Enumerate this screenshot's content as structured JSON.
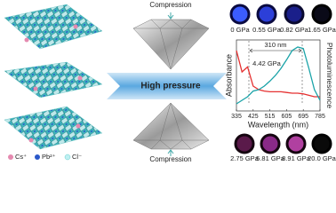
{
  "illustration": {
    "top_label": "Compression",
    "center_label": "High pressure",
    "bottom_label": "Compression",
    "legend": [
      "Cs⁺",
      "Pb²⁺",
      "Cl⁻"
    ],
    "top_pressures": [
      "0 GPa",
      "0.55 GPa",
      "0.82 GPa",
      "1.65 GPa"
    ],
    "bottom_pressures": [
      "2.75 GPa",
      "5.81 GPa",
      "8.91 GPa",
      "20.0 GPa"
    ]
  },
  "chart_data": {
    "type": "line",
    "x_label": "Wavelength (nm)",
    "annotations": [
      "310 nm",
      "4.42 GPa"
    ],
    "x": [
      335,
      365,
      395,
      425,
      455,
      485,
      515,
      545,
      575,
      605,
      635,
      665,
      695,
      725,
      755,
      785
    ],
    "series": [
      {
        "name": "Absorbance",
        "color": "#e53030",
        "values": [
          0.85,
          0.55,
          0.62,
          0.35,
          0.3,
          0.28,
          0.27,
          0.27,
          0.27,
          0.26,
          0.25,
          0.25,
          0.24,
          0.22,
          0.2,
          0.2
        ]
      },
      {
        "name": "Photoluminescence",
        "color": "#1aa3a8",
        "values": [
          0.1,
          0.15,
          0.2,
          0.28,
          0.3,
          0.35,
          0.42,
          0.5,
          0.6,
          0.72,
          0.85,
          0.9,
          0.88,
          0.6,
          0.3,
          0.15
        ]
      }
    ],
    "xlim": [
      335,
      785
    ],
    "ylim": [
      0,
      1
    ],
    "xticks": [
      335,
      425,
      515,
      605,
      695,
      785
    ]
  }
}
